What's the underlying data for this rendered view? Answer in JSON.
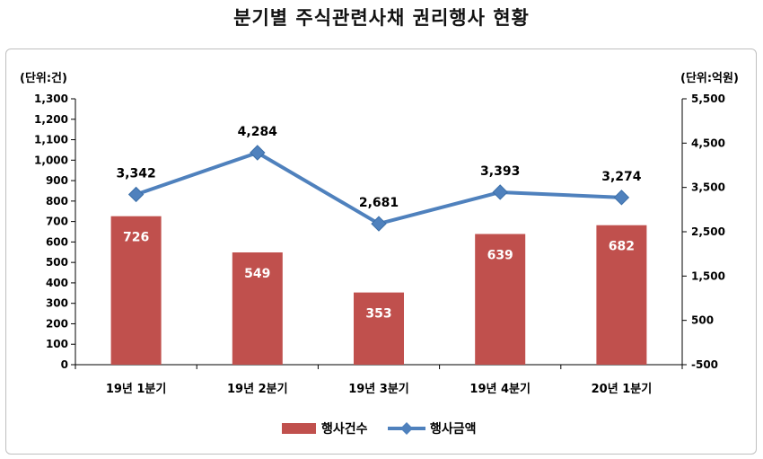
{
  "title": "분기별 주식관련사채 권리행사 현황",
  "chart_data": {
    "type": "bar",
    "categories": [
      "19년 1분기",
      "19년 2분기",
      "19년 3분기",
      "19년 4분기",
      "20년 1분기"
    ],
    "series": [
      {
        "name": "행사건수",
        "type": "bar",
        "axis": "left",
        "color": "#c0504d",
        "values": [
          726,
          549,
          353,
          639,
          682
        ]
      },
      {
        "name": "행사금액",
        "type": "line",
        "axis": "right",
        "color": "#4f81bd",
        "values": [
          3342,
          4284,
          2681,
          3393,
          3274
        ]
      }
    ],
    "y_left": {
      "unit_label": "(단위:건)",
      "min": 0,
      "max": 1300,
      "step": 100
    },
    "y_right": {
      "unit_label": "(단위:억원)",
      "min": -500,
      "max": 5500,
      "step": 1000
    },
    "legend_position": "bottom",
    "grid": false,
    "data_labels": true
  }
}
